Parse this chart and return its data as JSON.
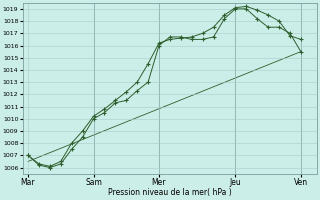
{
  "xlabel": "Pression niveau de la mer( hPa )",
  "background_color": "#cceee8",
  "grid_color": "#aacccc",
  "line_color": "#2d5e2d",
  "ylim": [
    1005.5,
    1019.5
  ],
  "yticks": [
    1006,
    1007,
    1008,
    1009,
    1010,
    1011,
    1012,
    1013,
    1014,
    1015,
    1016,
    1017,
    1018,
    1019
  ],
  "x_day_labels": [
    "Mar",
    "Sam",
    "Mer",
    "Jeu",
    "Ven"
  ],
  "x_day_positions": [
    0,
    6,
    12,
    19,
    25
  ],
  "xlim": [
    -0.5,
    26.5
  ],
  "series1_x": [
    0,
    1,
    2,
    3,
    4,
    5,
    6,
    7,
    8,
    9,
    10,
    11,
    12,
    13,
    14,
    15,
    16,
    17,
    18,
    19,
    20,
    21,
    22,
    23,
    24,
    25
  ],
  "series1_y": [
    1007.0,
    1006.2,
    1006.0,
    1006.3,
    1007.5,
    1008.5,
    1010.0,
    1010.5,
    1011.3,
    1011.5,
    1012.3,
    1013.0,
    1016.0,
    1016.7,
    1016.7,
    1016.5,
    1016.5,
    1016.7,
    1018.2,
    1019.0,
    1019.0,
    1018.2,
    1017.5,
    1017.5,
    1017.0,
    1015.5
  ],
  "series2_x": [
    0,
    1,
    2,
    3,
    4,
    5,
    6,
    7,
    8,
    9,
    10,
    11,
    12,
    13,
    14,
    15,
    16,
    17,
    18,
    19,
    20,
    21,
    22,
    23,
    24,
    25
  ],
  "series2_y": [
    1007.0,
    1006.3,
    1006.1,
    1006.5,
    1008.0,
    1009.0,
    1010.2,
    1010.8,
    1011.5,
    1012.2,
    1013.0,
    1014.5,
    1016.2,
    1016.5,
    1016.6,
    1016.7,
    1017.0,
    1017.5,
    1018.5,
    1019.1,
    1019.2,
    1018.9,
    1018.5,
    1018.0,
    1016.8,
    1016.5
  ],
  "series3_x": [
    0,
    25
  ],
  "series3_y": [
    1006.5,
    1015.5
  ]
}
